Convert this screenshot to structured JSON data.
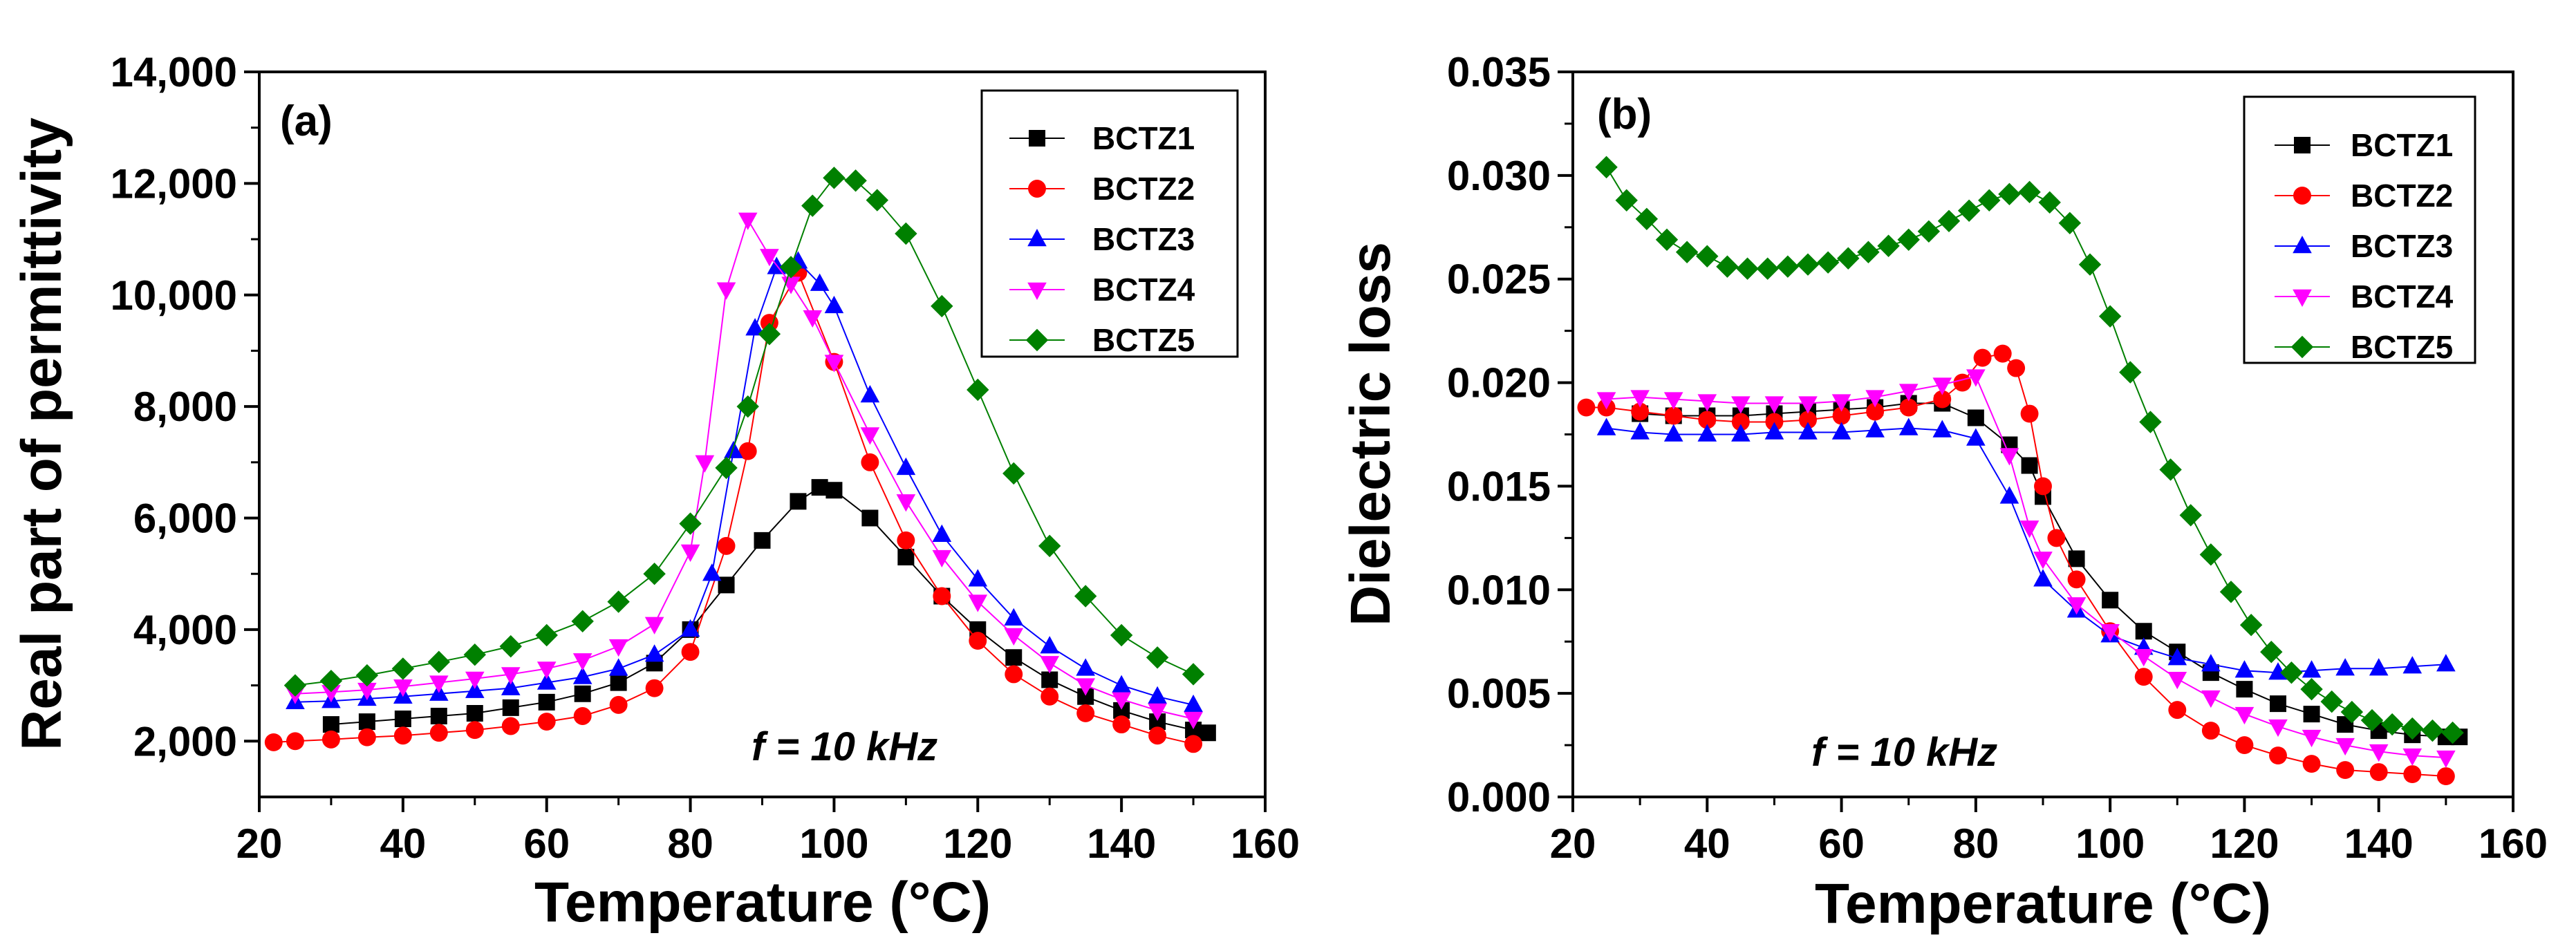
{
  "chart_data": [
    {
      "type": "scatter",
      "panel": "(a)",
      "xlabel": "Temperature (°C)",
      "ylabel": "Real part of permittivity",
      "annotation": "f = 10 kHz",
      "xlim": [
        20,
        160
      ],
      "ylim": [
        1000,
        14000
      ],
      "x_ticks": [
        20,
        40,
        60,
        80,
        100,
        120,
        140,
        160
      ],
      "x_tick_labels": [
        "20",
        "40",
        "60",
        "80",
        "100",
        "120",
        "140",
        "160"
      ],
      "y_ticks": [
        2000,
        4000,
        6000,
        8000,
        10000,
        12000,
        14000
      ],
      "y_tick_labels": [
        "2,000",
        "4,000",
        "6,000",
        "8,000",
        "10,000",
        "12,000",
        "14,000"
      ],
      "legend_position": "top-right",
      "series": [
        {
          "name": "BCTZ1",
          "color": "#000000",
          "marker": "square",
          "x": [
            30,
            35,
            40,
            45,
            50,
            55,
            60,
            65,
            70,
            75,
            80,
            85,
            90,
            95,
            98,
            100,
            105,
            110,
            115,
            120,
            125,
            130,
            135,
            140,
            145,
            150,
            152
          ],
          "y": [
            2300,
            2350,
            2400,
            2450,
            2500,
            2600,
            2700,
            2850,
            3050,
            3400,
            4000,
            4800,
            5600,
            6300,
            6550,
            6500,
            6000,
            5300,
            4600,
            4000,
            3500,
            3100,
            2800,
            2550,
            2350,
            2200,
            2150
          ]
        },
        {
          "name": "BCTZ2",
          "color": "#ff0000",
          "marker": "circle",
          "x": [
            22,
            25,
            30,
            35,
            40,
            45,
            50,
            55,
            60,
            65,
            70,
            75,
            80,
            85,
            88,
            91,
            95,
            100,
            105,
            110,
            115,
            120,
            125,
            130,
            135,
            140,
            145,
            150
          ],
          "y": [
            1980,
            2000,
            2030,
            2070,
            2100,
            2150,
            2200,
            2270,
            2350,
            2450,
            2650,
            2950,
            3600,
            5500,
            7200,
            9500,
            10400,
            8800,
            7000,
            5600,
            4600,
            3800,
            3200,
            2800,
            2500,
            2300,
            2100,
            1950
          ]
        },
        {
          "name": "BCTZ3",
          "color": "#0000ff",
          "marker": "triangle-up",
          "x": [
            25,
            30,
            35,
            40,
            45,
            50,
            55,
            60,
            65,
            70,
            75,
            80,
            83,
            86,
            89,
            92,
            95,
            98,
            100,
            105,
            110,
            115,
            120,
            125,
            130,
            135,
            140,
            145,
            150
          ],
          "y": [
            2700,
            2720,
            2760,
            2800,
            2850,
            2900,
            2950,
            3050,
            3150,
            3300,
            3550,
            4000,
            5000,
            7200,
            9400,
            10500,
            10600,
            10200,
            9800,
            8200,
            6900,
            5700,
            4900,
            4200,
            3700,
            3300,
            3000,
            2800,
            2650
          ]
        },
        {
          "name": "BCTZ4",
          "color": "#ff00ff",
          "marker": "triangle-down",
          "x": [
            25,
            30,
            35,
            40,
            45,
            50,
            55,
            60,
            65,
            70,
            75,
            80,
            82,
            85,
            88,
            91,
            94,
            97,
            100,
            105,
            110,
            115,
            120,
            125,
            130,
            135,
            140,
            145,
            150
          ],
          "y": [
            2850,
            2880,
            2920,
            2980,
            3050,
            3120,
            3200,
            3300,
            3450,
            3700,
            4100,
            5400,
            7000,
            10100,
            11350,
            10700,
            10200,
            9600,
            8800,
            7500,
            6300,
            5300,
            4500,
            3900,
            3400,
            3000,
            2750,
            2550,
            2400
          ]
        },
        {
          "name": "BCTZ5",
          "color": "#008000",
          "marker": "diamond",
          "x": [
            25,
            30,
            35,
            40,
            45,
            50,
            55,
            60,
            65,
            70,
            75,
            80,
            85,
            88,
            91,
            94,
            97,
            100,
            103,
            106,
            110,
            115,
            120,
            125,
            130,
            135,
            140,
            145,
            150
          ],
          "y": [
            3000,
            3080,
            3180,
            3300,
            3420,
            3550,
            3700,
            3900,
            4150,
            4500,
            5000,
            5900,
            6900,
            8000,
            9300,
            10500,
            11600,
            12100,
            12050,
            11700,
            11100,
            9800,
            8300,
            6800,
            5500,
            4600,
            3900,
            3500,
            3200
          ]
        }
      ]
    },
    {
      "type": "scatter",
      "panel": "(b)",
      "xlabel": "Temperature (°C)",
      "ylabel": "Dielectric loss",
      "annotation": "f = 10 kHz",
      "xlim": [
        20,
        160
      ],
      "ylim": [
        0,
        0.035
      ],
      "x_ticks": [
        20,
        40,
        60,
        80,
        100,
        120,
        140,
        160
      ],
      "x_tick_labels": [
        "20",
        "40",
        "60",
        "80",
        "100",
        "120",
        "140",
        "160"
      ],
      "y_ticks": [
        0,
        0.005,
        0.01,
        0.015,
        0.02,
        0.025,
        0.03,
        0.035
      ],
      "y_tick_labels": [
        "0.000",
        "0.005",
        "0.010",
        "0.015",
        "0.020",
        "0.025",
        "0.030",
        "0.035"
      ],
      "legend_position": "top-right",
      "series": [
        {
          "name": "BCTZ1",
          "color": "#000000",
          "marker": "square",
          "x": [
            30,
            35,
            40,
            45,
            50,
            55,
            60,
            65,
            70,
            75,
            80,
            85,
            88,
            90,
            95,
            100,
            105,
            110,
            115,
            120,
            125,
            130,
            135,
            140,
            145,
            150,
            152
          ],
          "y": [
            0.0185,
            0.0184,
            0.0184,
            0.0184,
            0.0185,
            0.0186,
            0.0187,
            0.0188,
            0.019,
            0.019,
            0.0183,
            0.017,
            0.016,
            0.0145,
            0.0115,
            0.0095,
            0.008,
            0.007,
            0.006,
            0.0052,
            0.0045,
            0.004,
            0.0035,
            0.0032,
            0.003,
            0.0029,
            0.0029
          ]
        },
        {
          "name": "BCTZ2",
          "color": "#ff0000",
          "marker": "circle",
          "x": [
            22,
            25,
            30,
            35,
            40,
            45,
            50,
            55,
            60,
            65,
            70,
            75,
            78,
            81,
            84,
            86,
            88,
            90,
            92,
            95,
            100,
            105,
            110,
            115,
            120,
            125,
            130,
            135,
            140,
            145,
            150
          ],
          "y": [
            0.0188,
            0.0188,
            0.0186,
            0.0184,
            0.0182,
            0.0181,
            0.0181,
            0.0182,
            0.0184,
            0.0186,
            0.0188,
            0.0192,
            0.02,
            0.0212,
            0.0214,
            0.0207,
            0.0185,
            0.015,
            0.0125,
            0.0105,
            0.008,
            0.0058,
            0.0042,
            0.0032,
            0.0025,
            0.002,
            0.0016,
            0.0013,
            0.0012,
            0.0011,
            0.001
          ]
        },
        {
          "name": "BCTZ3",
          "color": "#0000ff",
          "marker": "triangle-up",
          "x": [
            25,
            30,
            35,
            40,
            45,
            50,
            55,
            60,
            65,
            70,
            75,
            80,
            85,
            90,
            95,
            100,
            105,
            110,
            115,
            120,
            125,
            130,
            135,
            140,
            145,
            150
          ],
          "y": [
            0.0178,
            0.0176,
            0.0175,
            0.0175,
            0.0175,
            0.0176,
            0.0176,
            0.0176,
            0.0177,
            0.0178,
            0.0177,
            0.0173,
            0.0145,
            0.0105,
            0.009,
            0.0078,
            0.0072,
            0.0067,
            0.0064,
            0.0061,
            0.006,
            0.0061,
            0.0062,
            0.0062,
            0.0063,
            0.0064
          ]
        },
        {
          "name": "BCTZ4",
          "color": "#ff00ff",
          "marker": "triangle-down",
          "x": [
            25,
            30,
            35,
            40,
            45,
            50,
            55,
            60,
            65,
            70,
            75,
            80,
            85,
            88,
            90,
            95,
            100,
            105,
            110,
            115,
            120,
            125,
            130,
            135,
            140,
            145,
            150
          ],
          "y": [
            0.0192,
            0.0193,
            0.0192,
            0.0191,
            0.019,
            0.019,
            0.019,
            0.0191,
            0.0193,
            0.0196,
            0.0199,
            0.0203,
            0.0165,
            0.013,
            0.0115,
            0.0093,
            0.008,
            0.0068,
            0.0057,
            0.0048,
            0.004,
            0.0034,
            0.0029,
            0.0025,
            0.0022,
            0.002,
            0.0019
          ]
        },
        {
          "name": "BCTZ5",
          "color": "#008000",
          "marker": "diamond",
          "x": [
            25,
            28,
            31,
            34,
            37,
            40,
            43,
            46,
            49,
            52,
            55,
            58,
            61,
            64,
            67,
            70,
            73,
            76,
            79,
            82,
            85,
            88,
            91,
            94,
            97,
            100,
            103,
            106,
            109,
            112,
            115,
            118,
            121,
            124,
            127,
            130,
            133,
            136,
            139,
            142,
            145,
            148,
            151
          ],
          "y": [
            0.0304,
            0.0288,
            0.0279,
            0.0269,
            0.0263,
            0.0261,
            0.0256,
            0.0255,
            0.0255,
            0.0256,
            0.0257,
            0.0258,
            0.026,
            0.0263,
            0.0266,
            0.0269,
            0.0273,
            0.0278,
            0.0283,
            0.0288,
            0.0291,
            0.0292,
            0.0287,
            0.0277,
            0.0257,
            0.0232,
            0.0205,
            0.0181,
            0.0158,
            0.0136,
            0.0117,
            0.0099,
            0.0083,
            0.007,
            0.006,
            0.0052,
            0.0046,
            0.0041,
            0.0037,
            0.0035,
            0.0033,
            0.0032,
            0.0031
          ]
        }
      ]
    }
  ]
}
